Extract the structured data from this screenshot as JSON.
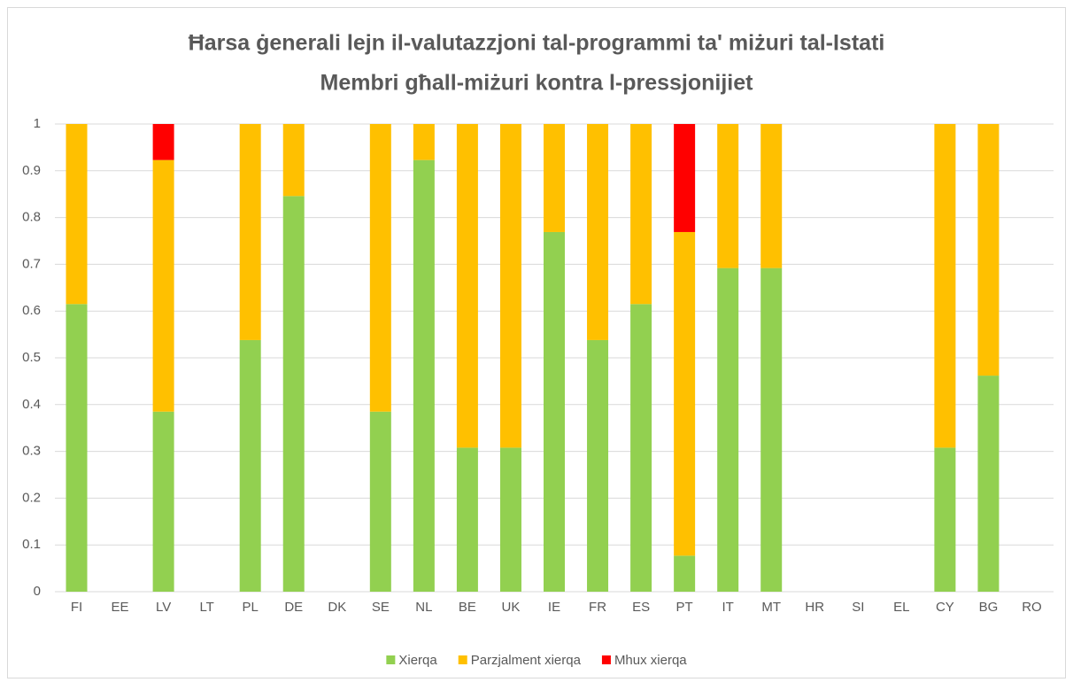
{
  "chart_data": {
    "type": "stacked_bar",
    "title": [
      "Ħarsa ġenerali lejn il-valutazzjoni tal-programmi ta' miżuri tal-Istati",
      "Membri għall-miżuri kontra l-pressjonijiet"
    ],
    "categories": [
      "FI",
      "EE",
      "LV",
      "LT",
      "PL",
      "DE",
      "DK",
      "SE",
      "NL",
      "BE",
      "UK",
      "IE",
      "FR",
      "ES",
      "PT",
      "IT",
      "MT",
      "HR",
      "SI",
      "EL",
      "CY",
      "BG",
      "RO"
    ],
    "series": [
      {
        "name": "Xierqa",
        "color": "#92d050",
        "values": [
          0.615,
          0,
          0.385,
          0,
          0.538,
          0.846,
          0,
          0.385,
          0.923,
          0.308,
          0.308,
          0.769,
          0.538,
          0.615,
          0.077,
          0.692,
          0.692,
          0,
          0,
          0,
          0.308,
          0.462,
          0
        ]
      },
      {
        "name": "Parzjalment xierqa",
        "color": "#ffc000",
        "values": [
          0.385,
          0,
          0.538,
          0,
          0.462,
          0.154,
          0,
          0.615,
          0.077,
          0.692,
          0.692,
          0.231,
          0.462,
          0.385,
          0.692,
          0.308,
          0.308,
          0,
          0,
          0,
          0.692,
          0.538,
          0
        ]
      },
      {
        "name": "Mhux xierqa",
        "color": "#ff0000",
        "values": [
          0,
          0,
          0.077,
          0,
          0,
          0,
          0,
          0,
          0,
          0,
          0,
          0,
          0,
          0,
          0.231,
          0,
          0,
          0,
          0,
          0,
          0,
          0,
          0
        ]
      }
    ],
    "ylim": [
      0,
      1
    ],
    "yticks": [
      0,
      0.1,
      0.2,
      0.3,
      0.4,
      0.5,
      0.6,
      0.7,
      0.8,
      0.9,
      1
    ],
    "grid": true,
    "legend": "bottom"
  }
}
